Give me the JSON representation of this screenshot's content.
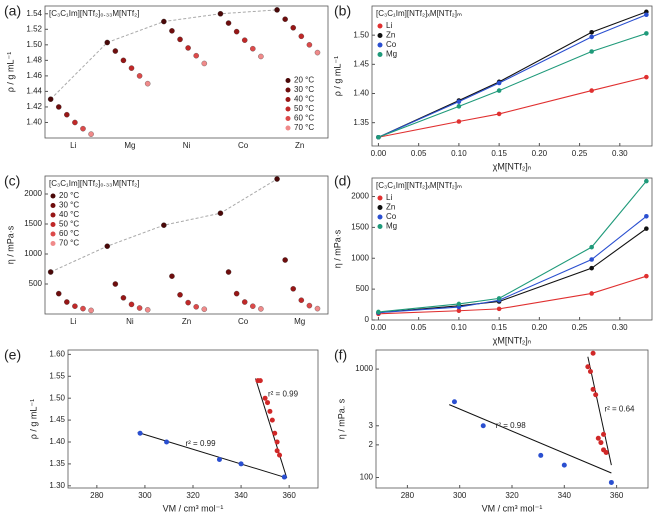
{
  "chart_data": [
    {
      "type": "dot",
      "panel": "(a)",
      "annotation": "[C₃C₁Im][NTf₂]₀.₃₃M[NTf₂]",
      "ylabel": "ρ / g mL⁻¹",
      "legend": "lower right",
      "categories": [
        "Li",
        "Mg",
        "Ni",
        "Co",
        "Zn"
      ],
      "ylim": [
        1.38,
        1.55
      ],
      "yticks": [
        {
          "value": 1.4,
          "label": "1.40"
        },
        1.42,
        1.44,
        1.46,
        1.48,
        {
          "value": 1.5,
          "label": "1.50"
        },
        1.52,
        1.54
      ],
      "series": [
        {
          "name": "20 °C",
          "color": "#4a0808",
          "values": [
            1.43,
            1.503,
            1.53,
            1.54,
            1.545
          ]
        },
        {
          "name": "30 °C",
          "color": "#6e0d0d",
          "values": [
            1.42,
            1.492,
            1.518,
            1.528,
            1.533
          ]
        },
        {
          "name": "40 °C",
          "color": "#971616",
          "values": [
            1.41,
            1.48,
            1.507,
            1.517,
            1.522
          ]
        },
        {
          "name": "50 °C",
          "color": "#c02828",
          "values": [
            1.4,
            1.47,
            1.496,
            1.506,
            1.511
          ]
        },
        {
          "name": "60 °C",
          "color": "#dc4a4a",
          "values": [
            1.392,
            1.46,
            1.486,
            1.495,
            1.5
          ]
        },
        {
          "name": "70 °C",
          "color": "#f08a8a",
          "values": [
            1.385,
            1.45,
            1.476,
            1.485,
            1.49
          ]
        }
      ]
    },
    {
      "type": "line",
      "panel": "(b)",
      "annotation": "[C₃C₁Im][NTf₂]ₓM[NTf₂]ₘ",
      "ylabel": "ρ / g mL⁻¹",
      "xlabel": "χM[NTf₂]ₙ",
      "legend": "upper left",
      "x": [
        0,
        0.1,
        0.15,
        0.265,
        0.333
      ],
      "xlim": [
        -0.008,
        0.34
      ],
      "xticks": [
        {
          "value": 0,
          "label": "0.00"
        },
        0.05,
        {
          "value": 0.1,
          "label": "0.10"
        },
        0.15,
        {
          "value": 0.2,
          "label": "0.20"
        },
        0.25,
        {
          "value": 0.3,
          "label": "0.30"
        }
      ],
      "ylim": [
        1.31,
        1.55
      ],
      "yticks": [
        1.35,
        {
          "value": 1.4,
          "label": "1.40"
        },
        1.45,
        {
          "value": 1.5,
          "label": "1.50"
        }
      ],
      "series": [
        {
          "name": "Li",
          "color": "#e03030",
          "values": [
            1.325,
            1.352,
            1.365,
            1.405,
            1.428
          ]
        },
        {
          "name": "Zn",
          "color": "#111111",
          "values": [
            1.325,
            1.388,
            1.42,
            1.505,
            1.54
          ]
        },
        {
          "name": "Co",
          "color": "#2a4fd0",
          "values": [
            1.325,
            1.386,
            1.418,
            1.497,
            1.535
          ]
        },
        {
          "name": "Mg",
          "color": "#1f9a7a",
          "values": [
            1.325,
            1.378,
            1.405,
            1.472,
            1.503
          ]
        }
      ]
    },
    {
      "type": "dot",
      "panel": "(c)",
      "annotation": "[C₃C₁Im][NTf₂]₀.₃₃M[NTf₂]",
      "ylabel": "η / mPa·s",
      "legend": "upper left",
      "categories": [
        "Li",
        "Ni",
        "Zn",
        "Co",
        "Mg"
      ],
      "ylim": [
        0,
        2300
      ],
      "yticks": [
        500,
        1000,
        1500,
        2000
      ],
      "series": [
        {
          "name": "20 °C",
          "color": "#4a0808",
          "values": [
            700,
            1130,
            1480,
            1680,
            2250
          ]
        },
        {
          "name": "30 °C",
          "color": "#6e0d0d",
          "values": [
            340,
            500,
            630,
            700,
            900
          ]
        },
        {
          "name": "40 °C",
          "color": "#971616",
          "values": [
            200,
            270,
            320,
            340,
            420
          ]
        },
        {
          "name": "50 °C",
          "color": "#c02828",
          "values": [
            130,
            160,
            190,
            200,
            230
          ]
        },
        {
          "name": "60 °C",
          "color": "#dc4a4a",
          "values": [
            90,
            100,
            120,
            130,
            140
          ]
        },
        {
          "name": "70 °C",
          "color": "#f08a8a",
          "values": [
            60,
            70,
            80,
            85,
            90
          ]
        }
      ]
    },
    {
      "type": "line",
      "panel": "(d)",
      "annotation": "[C₃C₁Im][NTf₂]ₓM[NTf₂]ₘ",
      "ylabel": "η / mPa·s",
      "xlabel": "χM[NTf₂]ₙ",
      "legend": "upper left",
      "x": [
        0,
        0.1,
        0.15,
        0.265,
        0.333
      ],
      "xlim": [
        -0.008,
        0.34
      ],
      "xticks": [
        {
          "value": 0,
          "label": "0.00"
        },
        0.05,
        {
          "value": 0.1,
          "label": "0.10"
        },
        0.15,
        {
          "value": 0.2,
          "label": "0.20"
        },
        0.25,
        {
          "value": 0.3,
          "label": "0.30"
        }
      ],
      "ylim": [
        0,
        2300
      ],
      "yticks": [
        0,
        500,
        1000,
        1500,
        2000
      ],
      "series": [
        {
          "name": "Li",
          "color": "#e03030",
          "values": [
            100,
            150,
            180,
            430,
            710
          ]
        },
        {
          "name": "Zn",
          "color": "#111111",
          "values": [
            120,
            230,
            300,
            840,
            1480
          ]
        },
        {
          "name": "Co",
          "color": "#2a4fd0",
          "values": [
            120,
            210,
            320,
            980,
            1680
          ]
        },
        {
          "name": "Mg",
          "color": "#1f9a7a",
          "values": [
            130,
            260,
            350,
            1180,
            2250
          ]
        }
      ]
    },
    {
      "type": "scatter",
      "panel": "(e)",
      "ylabel": "ρ / g mL⁻¹",
      "xlabel": "VM / cm³ mol⁻¹",
      "xlim": [
        268,
        372
      ],
      "xticks": [
        280,
        300,
        320,
        340,
        360
      ],
      "ylim": [
        1.295,
        1.61
      ],
      "yticks": [
        {
          "value": 1.3,
          "label": "1.30"
        },
        1.35,
        {
          "value": 1.4,
          "label": "1.40"
        },
        1.45,
        {
          "value": 1.5,
          "label": "1.50"
        },
        1.55,
        {
          "value": 1.6,
          "label": "1.60"
        }
      ],
      "annotations": [
        "r² = 0.99",
        "r² = 0.99"
      ],
      "fits": [
        {
          "x": [
            297,
            359
          ],
          "values": [
            1.422,
            1.318
          ]
        },
        {
          "x": [
            346,
            359
          ],
          "values": [
            1.545,
            1.318
          ]
        }
      ],
      "series": [
        {
          "color": "#2a4fd0",
          "x": [
            298,
            309,
            331,
            340,
            358
          ],
          "values": [
            1.42,
            1.4,
            1.36,
            1.35,
            1.32
          ]
        },
        {
          "color": "#d02828",
          "x": [
            347,
            348,
            350,
            351,
            352,
            353,
            354,
            355,
            355,
            356
          ],
          "values": [
            1.54,
            1.54,
            1.5,
            1.49,
            1.47,
            1.45,
            1.42,
            1.4,
            1.38,
            1.37
          ]
        }
      ]
    },
    {
      "type": "scatter",
      "panel": "(f)",
      "ylabel": "η / mPa. s",
      "xlabel": "VM / cm³ mol⁻¹",
      "log": true,
      "xlim": [
        268,
        372
      ],
      "xticks": [
        280,
        300,
        320,
        340,
        360
      ],
      "ylim": [
        80,
        1500
      ],
      "yticks": [
        100,
        {
          "value": 200,
          "label": "2"
        },
        {
          "value": 300,
          "label": "3"
        },
        1000
      ],
      "annotations": [
        "r² = 0.98",
        "r² = 0.64"
      ],
      "fits": [
        {
          "x": [
            296,
            358
          ],
          "values": [
            470,
            110
          ]
        },
        {
          "x": [
            349,
            358
          ],
          "values": [
            1300,
            130
          ]
        }
      ],
      "series": [
        {
          "color": "#2a4fd0",
          "x": [
            298,
            309,
            331,
            340,
            358
          ],
          "values": [
            500,
            300,
            160,
            130,
            90
          ]
        },
        {
          "color": "#d02828",
          "x": [
            349,
            350,
            351,
            351,
            352,
            353,
            354,
            355,
            355,
            356
          ],
          "values": [
            1050,
            950,
            1400,
            650,
            580,
            230,
            210,
            250,
            180,
            170
          ]
        }
      ]
    }
  ]
}
